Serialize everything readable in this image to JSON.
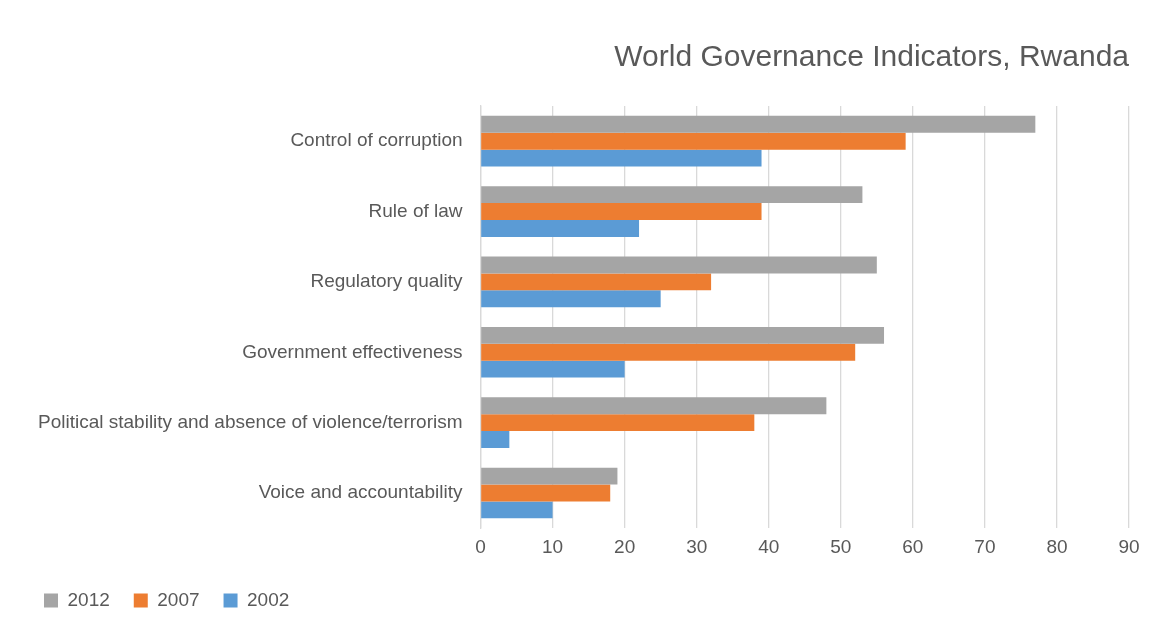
{
  "chart_data": {
    "type": "bar",
    "orientation": "horizontal",
    "title": "World Governance Indicators, Rwanda",
    "categories": [
      "Control of corruption",
      "Rule of law",
      "Regulatory quality",
      "Government effectiveness",
      "Political stability and absence of violence/terrorism",
      "Voice and accountability"
    ],
    "series": [
      {
        "name": "2012",
        "color": "#a5a5a5",
        "values": [
          77,
          53,
          55,
          56,
          48,
          19
        ]
      },
      {
        "name": "2007",
        "color": "#ed7d31",
        "values": [
          59,
          39,
          32,
          52,
          38,
          18
        ]
      },
      {
        "name": "2002",
        "color": "#5b9bd5",
        "values": [
          39,
          22,
          25,
          20,
          4,
          10
        ]
      }
    ],
    "xlim": [
      0,
      90
    ],
    "xticks": [
      0,
      10,
      20,
      30,
      40,
      50,
      60,
      70,
      80,
      90
    ],
    "grid": "x",
    "legend": "bottom"
  }
}
